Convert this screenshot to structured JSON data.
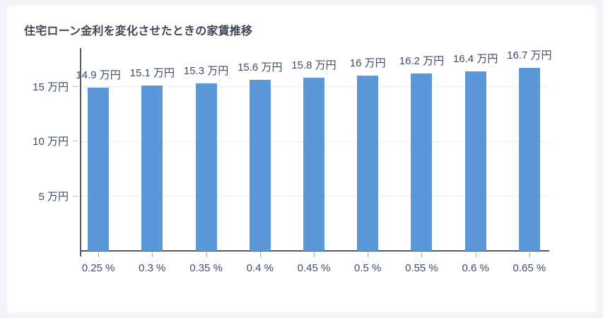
{
  "page": {
    "background_color": "#f3f5f9",
    "card_color": "#ffffff"
  },
  "chart_data": {
    "type": "bar",
    "title": "住宅ローン金利を変化させたときの家賃推移",
    "categories": [
      "0.25 %",
      "0.3 %",
      "0.35 %",
      "0.4 %",
      "0.45 %",
      "0.5 %",
      "0.55 %",
      "0.6 %",
      "0.65 %"
    ],
    "values": [
      14.9,
      15.1,
      15.3,
      15.6,
      15.8,
      16,
      16.2,
      16.4,
      16.7
    ],
    "bar_labels": [
      "14.9 万円",
      "15.1 万円",
      "15.3 万円",
      "15.6 万円",
      "15.8 万円",
      "16 万円",
      "16.2 万円",
      "16.4 万円",
      "16.7 万円"
    ],
    "unit": "万円",
    "xlabel": "",
    "ylabel": "",
    "yticks": [
      {
        "value": 5,
        "label": "5 万円"
      },
      {
        "value": 10,
        "label": "10 万円"
      },
      {
        "value": 15,
        "label": "15 万円"
      }
    ],
    "ylim": [
      0,
      18.5
    ],
    "grid": true,
    "legend": false,
    "colors": {
      "bar": "#5b97d9",
      "grid": "#e9edf4",
      "axis": "#56585b",
      "tick": "#a3a8af",
      "text": "#3e4d66",
      "title": "#3a4757"
    }
  }
}
